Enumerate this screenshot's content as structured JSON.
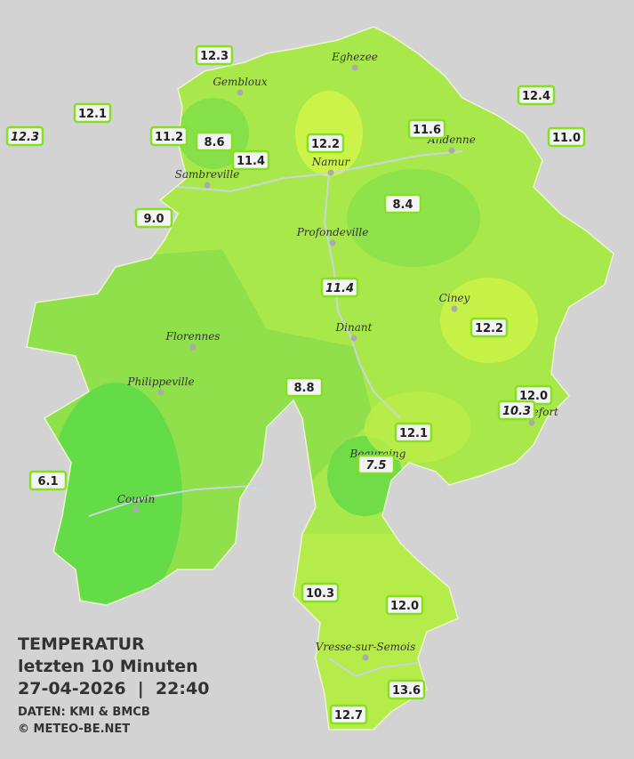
{
  "legend": {
    "title": "TEMPERATUR",
    "subtitle": "letzten 10 Minuten",
    "datetime": "27-04-2026  |  22:40",
    "source": "DATEN: KMI & BMCB",
    "copyright": "© METEO-BE.NET"
  },
  "cities": [
    "Eghezee",
    "Gembloux",
    "Andenne",
    "Namur",
    "Sambreville",
    "Profondeville",
    "Ciney",
    "Dinant",
    "Florennes",
    "Philippeville",
    "Rochefort",
    "Beauraing",
    "Couvin",
    "Vresse-sur-Semois"
  ],
  "stations": [
    "12.3",
    "12.1",
    "12.3",
    "11.2",
    "8.6",
    "11.4",
    "12.2",
    "11.6",
    "12.4",
    "11.0",
    "9.0",
    "8.4",
    "11.4",
    "12.2",
    "8.8",
    "12.0",
    "10.3",
    "12.1",
    "7.5",
    "6.1",
    "10.3",
    "12.0",
    "13.6",
    "12.7"
  ]
}
